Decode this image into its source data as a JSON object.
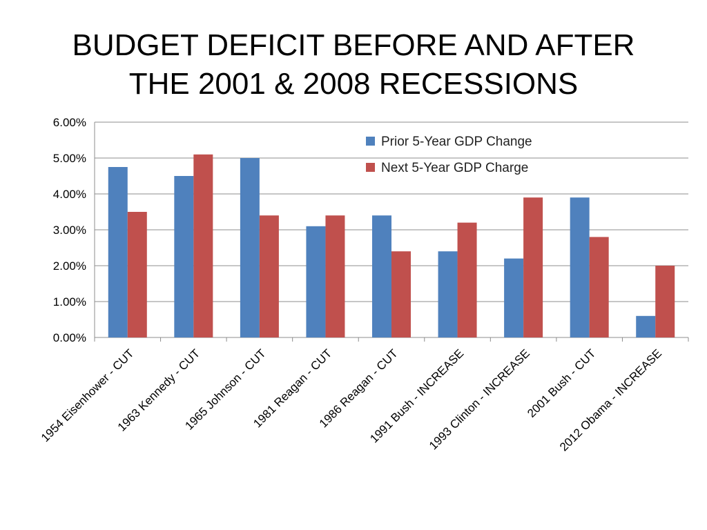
{
  "slide": {
    "title_line1": "BUDGET DEFICIT BEFORE AND AFTER",
    "title_line2": "THE 2001 & 2008 RECESSIONS"
  },
  "chart_data": {
    "type": "bar",
    "categories": [
      "1954 Eisenhower - CUT",
      "1963 Kennedy - CUT",
      "1965 Johnson - CUT",
      "1981 Reagan - CUT",
      "1986 Reagan - CUT",
      "1991 Bush - INCREASE",
      "1993 Clinton - INCREASE",
      "2001 Bush - CUT",
      "2012 Obama - INCREASE"
    ],
    "series": [
      {
        "name": "Prior 5-Year GDP Change",
        "color": "#4F81BD",
        "values": [
          4.75,
          4.5,
          5.0,
          3.1,
          3.4,
          2.4,
          2.2,
          3.9,
          0.6
        ]
      },
      {
        "name": "Next 5-Year GDP Charge",
        "color": "#C0504D",
        "values": [
          3.5,
          5.1,
          3.4,
          3.4,
          2.4,
          3.2,
          3.9,
          2.8,
          2.0
        ]
      }
    ],
    "yticks": [
      "0.00%",
      "1.00%",
      "2.00%",
      "3.00%",
      "4.00%",
      "5.00%",
      "6.00%"
    ],
    "ylim": [
      0,
      6
    ],
    "grid": true,
    "legend_position": "top-right"
  }
}
